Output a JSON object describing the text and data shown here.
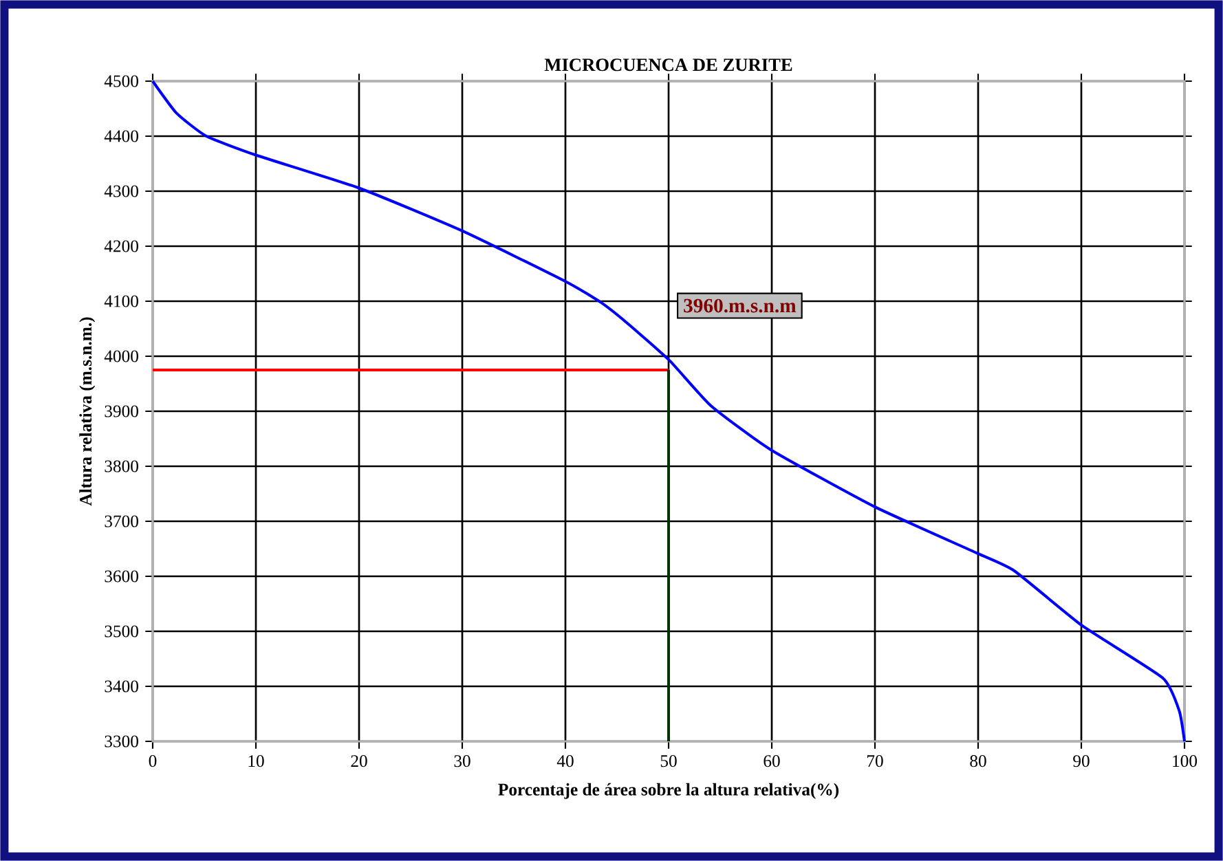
{
  "chart_data": {
    "type": "line",
    "title": "MICROCUENCA DE ZURITE",
    "xlabel": "Porcentaje  de área sobre la altura relativa(%)",
    "ylabel": "Altura relativa  (m.s.n.m.)",
    "xlim": [
      0,
      100
    ],
    "ylim": [
      3300,
      4500
    ],
    "xticks": [
      0,
      10,
      20,
      30,
      40,
      50,
      60,
      70,
      80,
      90,
      100
    ],
    "yticks": [
      3300,
      3400,
      3500,
      3600,
      3700,
      3800,
      3900,
      4000,
      4100,
      4200,
      4300,
      4400,
      4500
    ],
    "grid": true,
    "marker": "none",
    "line_style": "solid",
    "series": [
      {
        "color": "#0000ff",
        "x": [
          0,
          2.3,
          5.2,
          10.1,
          20.1,
          30.1,
          40.1,
          43.5,
          46,
          50.1,
          54.1,
          59.9,
          69.9,
          79.9,
          83.5,
          90.1,
          97.9,
          99.5,
          100
        ],
        "values": [
          4500,
          4442,
          4400,
          4365,
          4305,
          4227,
          4135,
          4097,
          4060,
          3992,
          3910,
          3830,
          3727,
          3642,
          3610,
          3510,
          3415,
          3355,
          3300
        ]
      },
      {
        "color": "#ff0000",
        "x": [
          0,
          50
        ],
        "values": [
          3975,
          3975
        ]
      },
      {
        "color": "#003300",
        "x": [
          50,
          50
        ],
        "values": [
          3300,
          3975
        ]
      }
    ],
    "annotations": [
      "3960.m.s.n.m"
    ]
  }
}
